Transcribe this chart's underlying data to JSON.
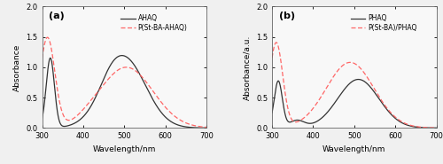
{
  "panel_a": {
    "label": "(a)",
    "xlabel": "Wavelength/nm",
    "ylabel": "Absorbance",
    "xlim": [
      300,
      700
    ],
    "ylim": [
      0,
      2.0
    ],
    "yticks": [
      0.0,
      0.5,
      1.0,
      1.5,
      2.0
    ],
    "xticks": [
      300,
      400,
      500,
      600,
      700
    ],
    "line1_label": "AHAQ",
    "line1_color": "#333333",
    "line2_label": "P(St-BA-AHAQ)",
    "line2_color": "#FF6666"
  },
  "panel_b": {
    "label": "(b)",
    "xlabel": "Wavelength/nm",
    "ylabel": "Absorbance/a.u.",
    "xlim": [
      300,
      700
    ],
    "ylim": [
      0,
      2.0
    ],
    "yticks": [
      0.0,
      0.5,
      1.0,
      1.5,
      2.0
    ],
    "xticks": [
      300,
      400,
      500,
      600,
      700
    ],
    "line1_label": "PHAQ",
    "line1_color": "#333333",
    "line2_label": "P(St-BA)/PHAQ",
    "line2_color": "#FF6666"
  },
  "fig_facecolor": "#f0f0f0",
  "axes_facecolor": "#f8f8f8"
}
